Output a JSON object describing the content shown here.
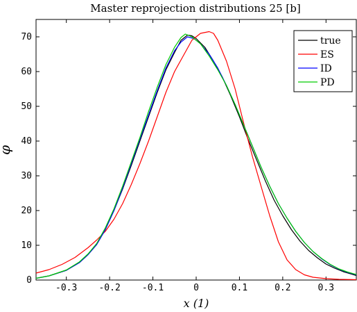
{
  "chart_data": {
    "type": "line",
    "title": "Master reprojection distributions 25 [b]",
    "xlabel": "x (1)",
    "ylabel": "φ",
    "xlim": [
      -0.37,
      0.37
    ],
    "ylim": [
      0,
      75
    ],
    "xticks": [
      -0.3,
      -0.2,
      -0.1,
      0,
      0.1,
      0.2,
      0.3
    ],
    "xtick_labels": [
      "-0.3",
      "-0.2",
      "-0.1",
      "0",
      "0.1",
      "0.2",
      "0.3"
    ],
    "yticks": [
      0,
      10,
      20,
      30,
      40,
      50,
      60,
      70
    ],
    "ytick_labels": [
      "0",
      "10",
      "20",
      "30",
      "40",
      "50",
      "60",
      "70"
    ],
    "grid": false,
    "legend_position": "top-right",
    "series": [
      {
        "name": "true",
        "color": "#000000",
        "x": [
          -0.37,
          -0.34,
          -0.3,
          -0.27,
          -0.25,
          -0.23,
          -0.21,
          -0.19,
          -0.17,
          -0.15,
          -0.13,
          -0.11,
          -0.09,
          -0.07,
          -0.05,
          -0.035,
          -0.02,
          -0.01,
          0,
          0.02,
          0.04,
          0.06,
          0.08,
          0.1,
          0.12,
          0.14,
          0.16,
          0.18,
          0.2,
          0.22,
          0.24,
          0.26,
          0.28,
          0.3,
          0.32,
          0.34,
          0.37
        ],
        "y": [
          0.5,
          1.2,
          2.8,
          5,
          7.3,
          10.2,
          14.5,
          20,
          26.2,
          33,
          40,
          47,
          54,
          60.5,
          65.5,
          69,
          70.5,
          70.3,
          69.5,
          67,
          63,
          58.5,
          53,
          47,
          40.5,
          34.5,
          28.5,
          23,
          18.5,
          14.5,
          11.2,
          8.5,
          6.4,
          4.6,
          3.4,
          2.4,
          1.3
        ]
      },
      {
        "name": "ES",
        "color": "#ff0000",
        "x": [
          -0.37,
          -0.34,
          -0.31,
          -0.28,
          -0.25,
          -0.23,
          -0.21,
          -0.19,
          -0.17,
          -0.15,
          -0.13,
          -0.11,
          -0.09,
          -0.07,
          -0.05,
          -0.03,
          -0.01,
          0.01,
          0.03,
          0.04,
          0.05,
          0.07,
          0.09,
          0.11,
          0.13,
          0.15,
          0.17,
          0.19,
          0.21,
          0.23,
          0.25,
          0.27,
          0.3,
          0.33,
          0.37
        ],
        "y": [
          2,
          3,
          4.5,
          6.5,
          9.3,
          11.5,
          14,
          17.5,
          22,
          27.5,
          33.5,
          40,
          47,
          54,
          60,
          64.5,
          69,
          71,
          71.5,
          71,
          69,
          63,
          55,
          45,
          35.5,
          27,
          18.5,
          11,
          5.8,
          3,
          1.5,
          0.8,
          0.4,
          0.2,
          0.1
        ]
      },
      {
        "name": "ID",
        "color": "#0000ff",
        "x": [
          -0.37,
          -0.34,
          -0.3,
          -0.27,
          -0.25,
          -0.23,
          -0.21,
          -0.19,
          -0.17,
          -0.15,
          -0.13,
          -0.11,
          -0.09,
          -0.07,
          -0.05,
          -0.035,
          -0.02,
          -0.005,
          0.01,
          0.03,
          0.05,
          0.07,
          0.09,
          0.11,
          0.13,
          0.15,
          0.17,
          0.19,
          0.21,
          0.23,
          0.25,
          0.27,
          0.29,
          0.31,
          0.33,
          0.35,
          0.37
        ],
        "y": [
          0.5,
          1.2,
          2.8,
          5,
          7.3,
          10.2,
          14.5,
          20,
          26.5,
          33.5,
          40.5,
          47.5,
          54.5,
          61,
          66,
          68.5,
          70,
          69.5,
          68,
          65,
          61,
          56,
          50.5,
          44.5,
          38.5,
          32.5,
          27,
          22,
          17.8,
          14,
          10.8,
          8.2,
          6.1,
          4.4,
          3.1,
          2.2,
          1.5
        ]
      },
      {
        "name": "PD",
        "color": "#00cc00",
        "x": [
          -0.37,
          -0.34,
          -0.3,
          -0.27,
          -0.25,
          -0.23,
          -0.21,
          -0.19,
          -0.17,
          -0.15,
          -0.13,
          -0.11,
          -0.09,
          -0.07,
          -0.05,
          -0.035,
          -0.025,
          -0.01,
          0.01,
          0.03,
          0.05,
          0.07,
          0.09,
          0.11,
          0.13,
          0.15,
          0.17,
          0.19,
          0.21,
          0.23,
          0.25,
          0.27,
          0.29,
          0.31,
          0.33,
          0.35,
          0.37
        ],
        "y": [
          0.5,
          1.2,
          2.9,
          5.2,
          7.5,
          10.5,
          15,
          20.5,
          27,
          34,
          41,
          48.5,
          55.5,
          62,
          67,
          69.8,
          70.8,
          70,
          68,
          64.5,
          60.5,
          56,
          50.5,
          44.5,
          38.5,
          32.5,
          27,
          22,
          17.8,
          14,
          10.8,
          8.2,
          6.2,
          4.5,
          3.2,
          2.3,
          1.6
        ]
      }
    ]
  }
}
